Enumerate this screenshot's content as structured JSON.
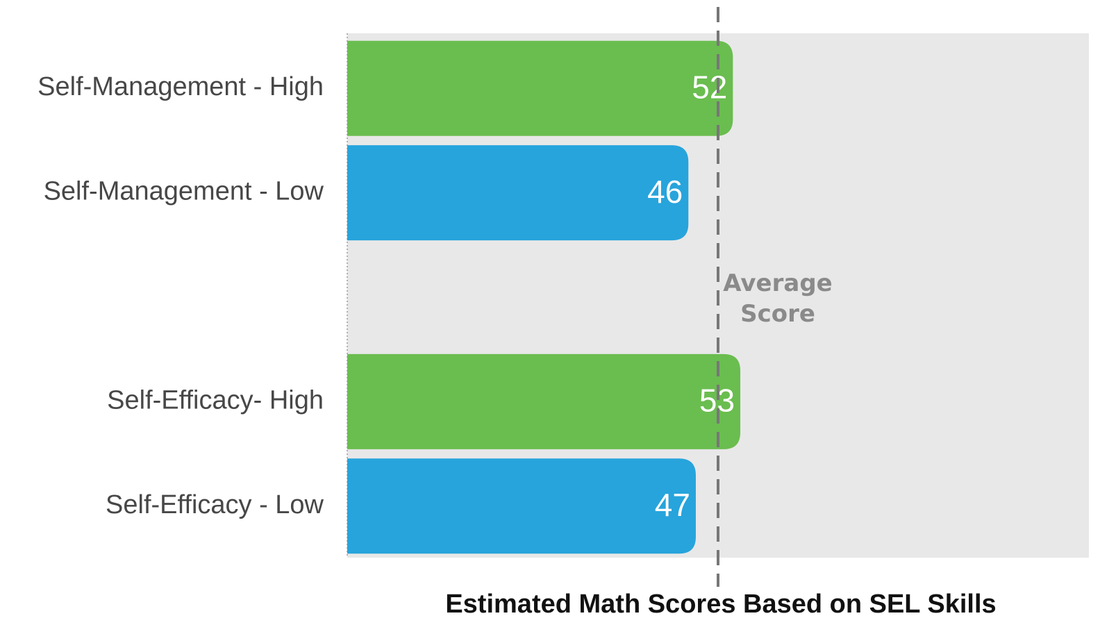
{
  "chart_data": {
    "type": "hbar",
    "title": "Estimated Math Scores Based on SEL Skills",
    "categories": [
      "Self-Management - High",
      "Self-Management - Low",
      null,
      "Self-Efficacy- High",
      "Self-Efficacy - Low"
    ],
    "values": [
      52,
      46,
      null,
      53,
      47
    ],
    "colors": [
      "#6abd4f",
      "#27a4dc",
      null,
      "#6abd4f",
      "#27a4dc"
    ],
    "xlim": [
      0,
      100
    ],
    "reference_line": {
      "value": 50,
      "label": "Average Score",
      "color": "#777777"
    }
  }
}
